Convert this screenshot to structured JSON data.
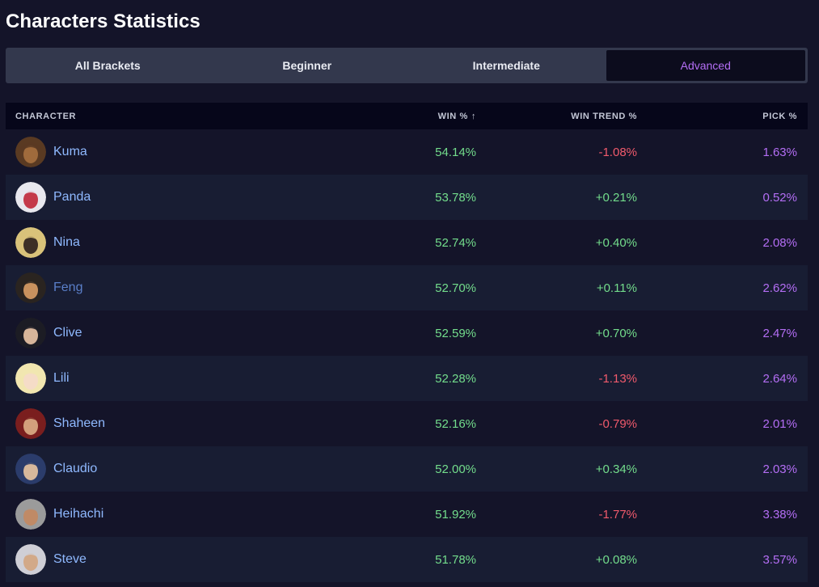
{
  "title": "Characters Statistics",
  "tabs": [
    {
      "label": "All Brackets",
      "active": false
    },
    {
      "label": "Beginner",
      "active": false
    },
    {
      "label": "Intermediate",
      "active": false
    },
    {
      "label": "Advanced",
      "active": true
    }
  ],
  "table": {
    "headers": {
      "character": "CHARACTER",
      "win": "WIN %",
      "win_sort_icon": "↑",
      "trend": "WIN TREND %",
      "pick": "PICK %"
    },
    "rows": [
      {
        "name": "Kuma",
        "win": "54.14%",
        "trend": "-1.08%",
        "pick": "1.63%",
        "avatar_icon": "kuma-portrait-icon"
      },
      {
        "name": "Panda",
        "win": "53.78%",
        "trend": "+0.21%",
        "pick": "0.52%",
        "avatar_icon": "panda-portrait-icon"
      },
      {
        "name": "Nina",
        "win": "52.74%",
        "trend": "+0.40%",
        "pick": "2.08%",
        "avatar_icon": "nina-portrait-icon"
      },
      {
        "name": "Feng",
        "win": "52.70%",
        "trend": "+0.11%",
        "pick": "2.62%",
        "avatar_icon": "feng-portrait-icon"
      },
      {
        "name": "Clive",
        "win": "52.59%",
        "trend": "+0.70%",
        "pick": "2.47%",
        "avatar_icon": "clive-portrait-icon"
      },
      {
        "name": "Lili",
        "win": "52.28%",
        "trend": "-1.13%",
        "pick": "2.64%",
        "avatar_icon": "lili-portrait-icon"
      },
      {
        "name": "Shaheen",
        "win": "52.16%",
        "trend": "-0.79%",
        "pick": "2.01%",
        "avatar_icon": "shaheen-portrait-icon"
      },
      {
        "name": "Claudio",
        "win": "52.00%",
        "trend": "+0.34%",
        "pick": "2.03%",
        "avatar_icon": "claudio-portrait-icon"
      },
      {
        "name": "Heihachi",
        "win": "51.92%",
        "trend": "-1.77%",
        "pick": "3.38%",
        "avatar_icon": "heihachi-portrait-icon"
      },
      {
        "name": "Steve",
        "win": "51.78%",
        "trend": "+0.08%",
        "pick": "3.57%",
        "avatar_icon": "steve-portrait-icon"
      }
    ]
  },
  "colors": {
    "background": "#141429",
    "row_alt": "#181d33",
    "header_bg": "#06061a",
    "tabs_bg": "#33384d",
    "accent_purple": "#b46ef5",
    "positive_green": "#73dd8c",
    "negative_red": "#f15a6c",
    "link_blue": "#8fb9ff"
  }
}
